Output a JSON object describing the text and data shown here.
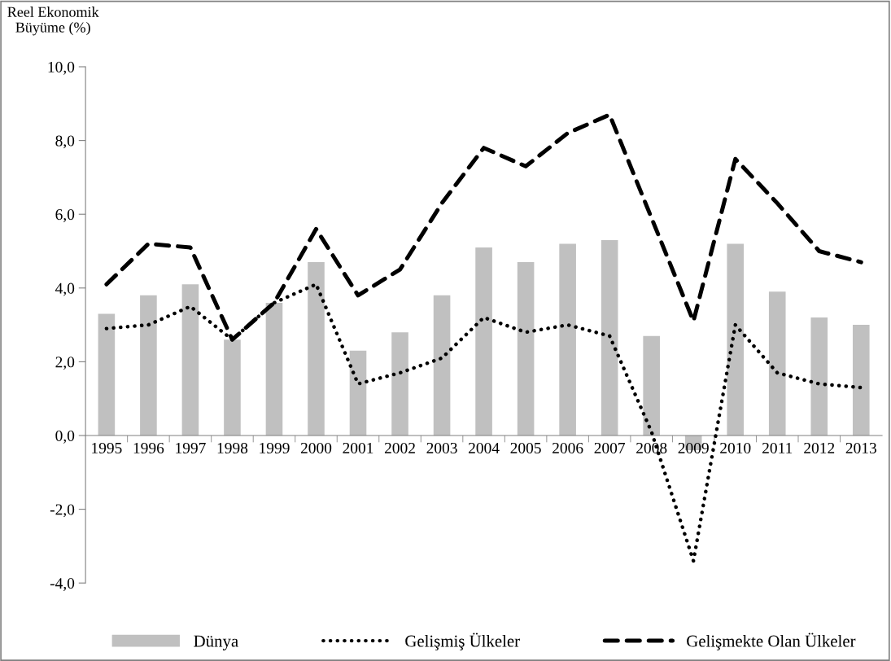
{
  "chart_data": {
    "type": "bar",
    "ylabel": "Reel Ekonomik\nBüyüme (%)",
    "categories": [
      "1995",
      "1996",
      "1997",
      "1998",
      "1999",
      "2000",
      "2001",
      "2002",
      "2003",
      "2004",
      "2005",
      "2006",
      "2007",
      "2008",
      "2009",
      "2010",
      "2011",
      "2012",
      "2013"
    ],
    "series": [
      {
        "name": "Dünya",
        "color": "#c0c0c0",
        "values": [
          3.3,
          3.8,
          4.1,
          2.6,
          3.6,
          4.7,
          2.3,
          2.8,
          3.8,
          5.1,
          4.7,
          5.2,
          5.3,
          2.7,
          -0.4,
          5.2,
          3.9,
          3.2,
          3.0
        ]
      },
      {
        "name": "Gelişmiş Ülkeler",
        "type": "line",
        "line_style": "dotted",
        "color": "#000000",
        "values": [
          2.9,
          3.0,
          3.5,
          2.6,
          3.6,
          4.1,
          1.4,
          1.7,
          2.1,
          3.2,
          2.8,
          3.0,
          2.7,
          0.1,
          -3.4,
          3.0,
          1.7,
          1.4,
          1.3
        ]
      },
      {
        "name": "Gelişmekte Olan Ülkeler",
        "type": "line",
        "line_style": "dashed",
        "color": "#000000",
        "values": [
          4.1,
          5.2,
          5.1,
          2.6,
          3.6,
          5.6,
          3.8,
          4.5,
          6.3,
          7.8,
          7.3,
          8.2,
          8.7,
          5.9,
          3.1,
          7.5,
          6.3,
          5.0,
          4.7
        ]
      }
    ],
    "ylim": [
      -4,
      10
    ],
    "yticks": [
      {
        "value": -4,
        "label": "-4,0"
      },
      {
        "value": -2,
        "label": "-2,0"
      },
      {
        "value": 0,
        "label": "0,0"
      },
      {
        "value": 2,
        "label": "2,0"
      },
      {
        "value": 4,
        "label": "4,0"
      },
      {
        "value": 6,
        "label": "6,0"
      },
      {
        "value": 8,
        "label": "8,0"
      },
      {
        "value": 10,
        "label": "10,0"
      }
    ],
    "grid": false,
    "legend": "bottom"
  }
}
